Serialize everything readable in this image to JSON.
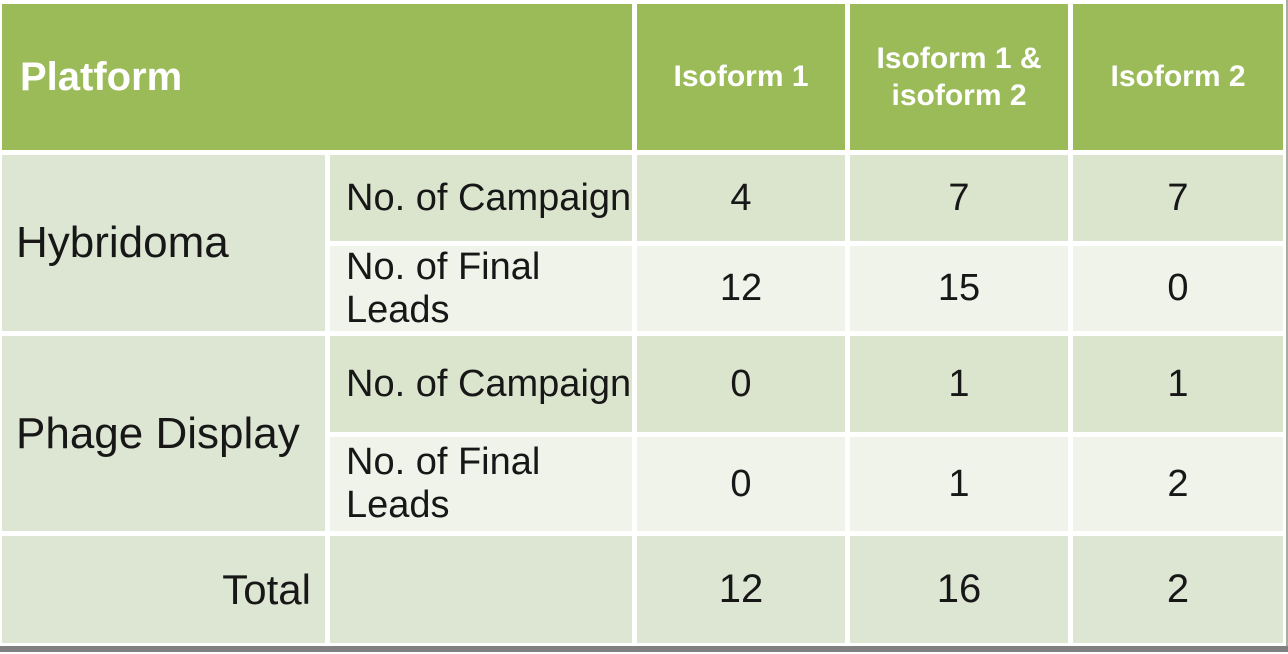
{
  "table": {
    "header": {
      "platform_label": "Platform",
      "columns": [
        {
          "label": "Isoform 1"
        },
        {
          "label": "Isoform 1 & isoform 2"
        },
        {
          "label": "Isoform 2"
        }
      ]
    },
    "groups": [
      {
        "platform": "Hybridoma",
        "rows": [
          {
            "metric": "No. of Campaign",
            "values": [
              "4",
              "7",
              "7"
            ]
          },
          {
            "metric": "No. of Final Leads",
            "values": [
              "12",
              "15",
              "0"
            ]
          }
        ]
      },
      {
        "platform": "Phage Display",
        "rows": [
          {
            "metric": "No. of Campaign",
            "values": [
              "0",
              "1",
              "1"
            ]
          },
          {
            "metric": "No. of Final Leads",
            "values": [
              "0",
              "1",
              "2"
            ]
          }
        ]
      }
    ],
    "total": {
      "label": "Total",
      "values": [
        "12",
        "16",
        "2"
      ]
    }
  },
  "colors": {
    "header_green": "#9bbb59",
    "band_dark": "#dbe5ce",
    "band_light": "#f0f3ea",
    "band_platform": "#dde6d2",
    "header_text": "#ffffff",
    "body_text": "#171717",
    "bottom_bar_gray": "#808080"
  }
}
